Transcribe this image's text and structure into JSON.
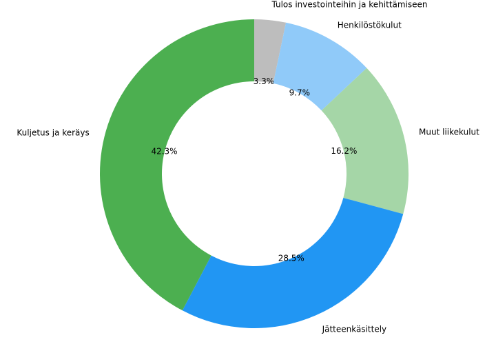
{
  "chart_data": {
    "type": "pie",
    "donut": true,
    "categories": [
      "Tulos investointeihin ja kehittämiseen",
      "Henkilöstökulut",
      "Muut liikekulut",
      "Jätteenkäsittely",
      "Kuljetus ja keräys"
    ],
    "values": [
      3.3,
      9.7,
      16.2,
      28.5,
      42.3
    ],
    "value_labels": [
      "3.3%",
      "9.7%",
      "16.2%",
      "28.5%",
      "42.3%"
    ],
    "colors": [
      "#bdbdbd",
      "#90caf9",
      "#a5d6a7",
      "#2196f3",
      "#4caf50"
    ]
  }
}
